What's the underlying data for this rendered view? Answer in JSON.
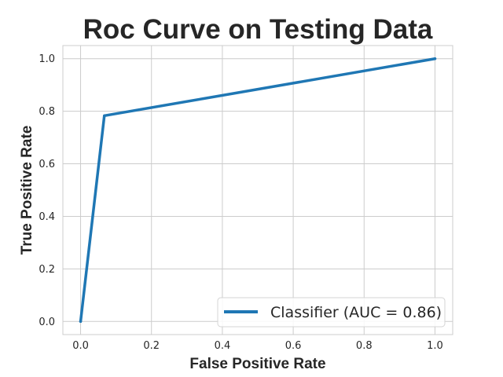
{
  "chart_data": {
    "type": "line",
    "title": "Roc Curve on Testing Data",
    "xlabel": "False Positive Rate",
    "ylabel": "True Positive Rate",
    "xlim": [
      -0.05,
      1.05
    ],
    "ylim": [
      -0.05,
      1.05
    ],
    "xticks": [
      0.0,
      0.2,
      0.4,
      0.6,
      0.8,
      1.0
    ],
    "xtick_labels": [
      "0.0",
      "0.2",
      "0.4",
      "0.6",
      "0.8",
      "1.0"
    ],
    "yticks": [
      0.0,
      0.2,
      0.4,
      0.6,
      0.8,
      1.0
    ],
    "ytick_labels": [
      "0.0",
      "0.2",
      "0.4",
      "0.6",
      "0.8",
      "1.0"
    ],
    "grid": true,
    "legend_position": "bottom-right",
    "series": [
      {
        "name": "Classifier (AUC = 0.86)",
        "color": "#1f77b4",
        "x": [
          0.0,
          0.067,
          1.0
        ],
        "y": [
          0.0,
          0.783,
          1.0
        ]
      }
    ]
  }
}
